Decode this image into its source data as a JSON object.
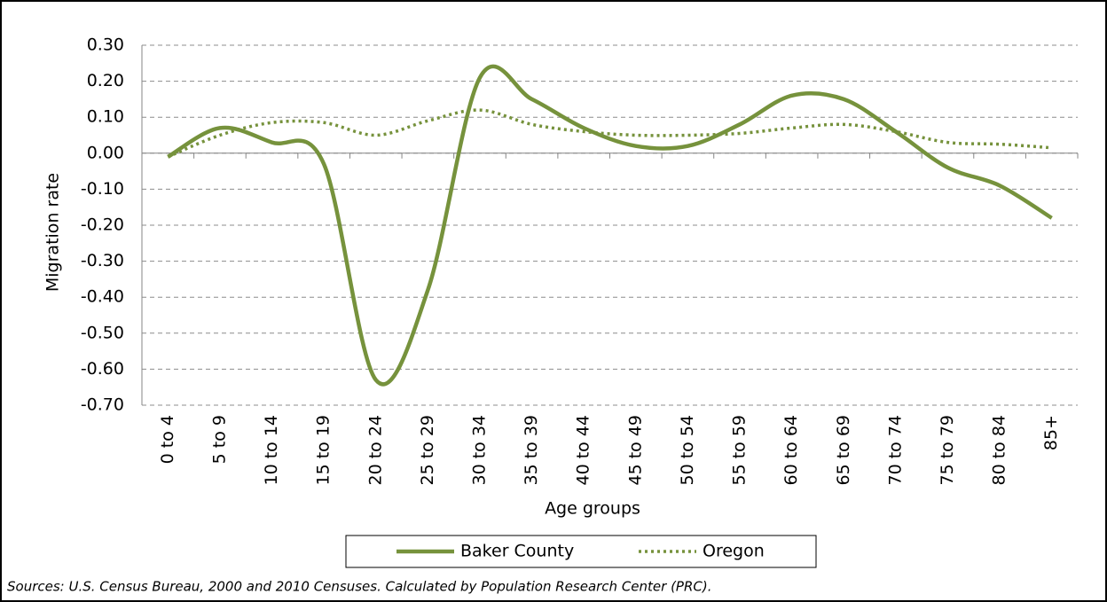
{
  "chart_data": {
    "type": "line",
    "x_label": "Age groups",
    "y_label": "Migration rate",
    "source": "Sources: U.S. Census Bureau, 2000 and 2010 Censuses. Calculated by Population Research  Center (PRC).",
    "categories": [
      "0 to 4",
      "5 to 9",
      "10 to 14",
      "15 to 19",
      "20 to 24",
      "25 to 29",
      "30 to 34",
      "35 to 39",
      "40 to 44",
      "45 to 49",
      "50 to 54",
      "55 to 59",
      "60 to 64",
      "65 to 69",
      "70 to 74",
      "75 to 79",
      "80 to 84",
      "85+"
    ],
    "series": [
      {
        "name": "Baker County",
        "color": "#76923c",
        "style": "solid",
        "values": [
          -0.01,
          0.07,
          0.03,
          -0.03,
          -0.63,
          -0.38,
          0.21,
          0.15,
          0.07,
          0.02,
          0.02,
          0.08,
          0.16,
          0.15,
          0.06,
          -0.04,
          -0.09,
          -0.18
        ]
      },
      {
        "name": "Oregon",
        "color": "#76923c",
        "style": "dotted",
        "values": [
          -0.01,
          0.05,
          0.085,
          0.085,
          0.05,
          0.09,
          0.12,
          0.08,
          0.06,
          0.05,
          0.05,
          0.055,
          0.07,
          0.08,
          0.06,
          0.03,
          0.025,
          0.015
        ]
      }
    ],
    "ylim": [
      -0.7,
      0.3
    ],
    "yticks": [
      {
        "value": 0.3,
        "label": "0.30"
      },
      {
        "value": 0.2,
        "label": "0.20"
      },
      {
        "value": 0.1,
        "label": "0.10"
      },
      {
        "value": 0,
        "label": "0.00"
      },
      {
        "value": -0.1,
        "label": "-0.10"
      },
      {
        "value": -0.2,
        "label": "-0.20"
      },
      {
        "value": -0.3,
        "label": "-0.30"
      },
      {
        "value": -0.4,
        "label": "-0.40"
      },
      {
        "value": -0.5,
        "label": "-0.50"
      },
      {
        "value": -0.6,
        "label": "-0.60"
      },
      {
        "value": -0.7,
        "label": "-0.70"
      }
    ],
    "grid": true,
    "legend": "bottom"
  }
}
